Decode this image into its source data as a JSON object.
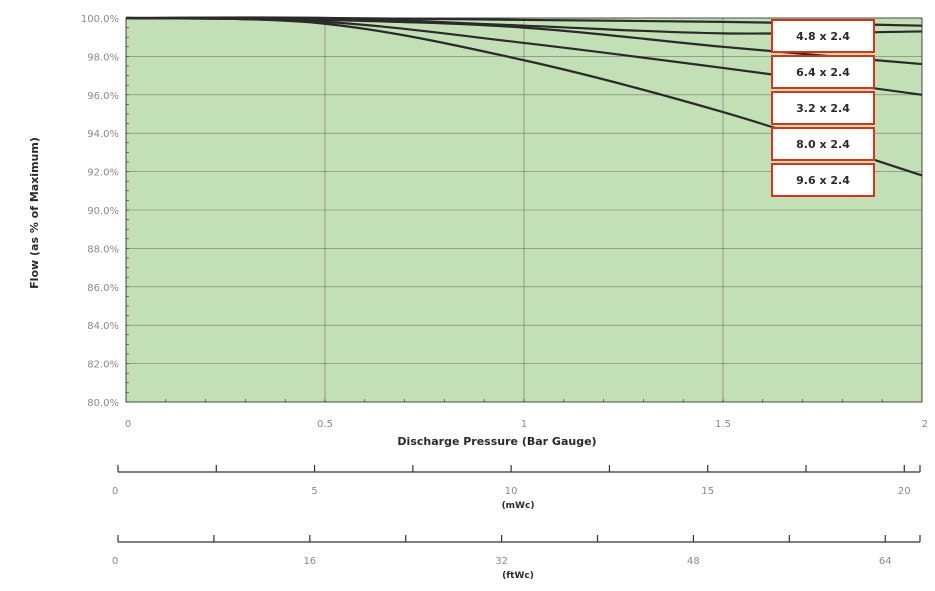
{
  "chart_data": {
    "type": "line",
    "xlabel": "Discharge Pressure (Bar Gauge)",
    "ylabel": "Flow (as % of Maximum)",
    "xlim": [
      0,
      2
    ],
    "ylim": [
      80,
      100
    ],
    "grid": true,
    "legend_position": "top-right",
    "x_ticks": [
      "0",
      "0.5",
      "1",
      "1.5",
      "2"
    ],
    "y_ticks": [
      "80.0%",
      "82.0%",
      "84.0%",
      "86.0%",
      "88.0%",
      "90.0%",
      "92.0%",
      "94.0%",
      "96.0%",
      "98.0%",
      "100.0%"
    ],
    "series": [
      {
        "name": "4.8 x 2.4",
        "x": [
          0,
          0.5,
          1,
          1.5,
          2
        ],
        "y": [
          100,
          100,
          99.9,
          99.8,
          99.6
        ]
      },
      {
        "name": "6.4 x 2.4",
        "x": [
          0,
          0.5,
          1,
          1.5,
          2
        ],
        "y": [
          100,
          100,
          99.6,
          99.2,
          99.3
        ]
      },
      {
        "name": "3.2 x 2.4",
        "x": [
          0,
          0.5,
          1,
          1.5,
          2
        ],
        "y": [
          100,
          99.9,
          99.5,
          98.5,
          97.6
        ]
      },
      {
        "name": "8.0 x 2.4",
        "x": [
          0,
          0.5,
          1,
          1.5,
          2
        ],
        "y": [
          100,
          99.8,
          98.7,
          97.4,
          96.0
        ]
      },
      {
        "name": "9.6 x 2.4",
        "x": [
          0,
          0.5,
          1,
          1.5,
          2
        ],
        "y": [
          100,
          99.7,
          97.8,
          95.1,
          91.8
        ]
      }
    ],
    "secondary_axes": [
      {
        "unit": "(mWc)",
        "ticks": [
          "0",
          "5",
          "10",
          "15",
          "20"
        ],
        "max": 20.4
      },
      {
        "unit": "(ftWc)",
        "ticks": [
          "0",
          "16",
          "32",
          "48",
          "64"
        ],
        "max": 66.9
      }
    ]
  },
  "colors": {
    "plot_fill": "#c2dfb6",
    "grid": "#2f2f2f",
    "line": "#2a2a2a",
    "legend_border": "#d7341e"
  }
}
